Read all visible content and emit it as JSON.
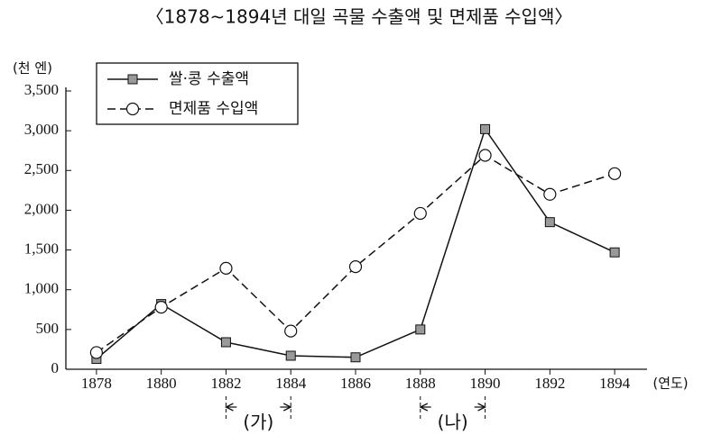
{
  "chart_data": {
    "type": "line",
    "title": "〈1878~1894년 대일 곡물 수출액 및 면제품 수입액〉",
    "y_label": "(천 엔)",
    "x_label": "(연도)",
    "x": [
      1878,
      1880,
      1882,
      1884,
      1886,
      1888,
      1890,
      1892,
      1894
    ],
    "series": [
      {
        "name": "쌀·콩 수출액",
        "color": "#111111",
        "line_style": "solid",
        "marker": "square",
        "marker_fill": "#999999",
        "values": [
          130,
          820,
          340,
          170,
          150,
          500,
          3020,
          1850,
          1470
        ]
      },
      {
        "name": "면제품 수입액",
        "color": "#111111",
        "line_style": "dashed",
        "marker": "circle",
        "marker_fill": "#ffffff",
        "values": [
          210,
          780,
          1270,
          480,
          1290,
          1960,
          2690,
          2200,
          2460
        ]
      }
    ],
    "xlim": [
      1877,
      1895
    ],
    "xticks": [
      1878,
      1880,
      1882,
      1884,
      1886,
      1888,
      1890,
      1892,
      1894
    ],
    "ylim": [
      0,
      3500
    ],
    "yticks": [
      0,
      500,
      {
        "value": 1000,
        "label": "1,000"
      },
      {
        "value": 1500,
        "label": "1,500"
      },
      {
        "value": 2000,
        "label": "2,000"
      },
      {
        "value": 2500,
        "label": "2,500"
      },
      {
        "value": 3000,
        "label": "3,000"
      },
      {
        "value": 3500,
        "label": "3,500"
      }
    ],
    "legend": "upper left",
    "annotations": [
      {
        "text": "(가)",
        "x": [
          1882,
          1884
        ]
      },
      {
        "text": "(나)",
        "x": [
          1888,
          1890
        ]
      }
    ]
  }
}
